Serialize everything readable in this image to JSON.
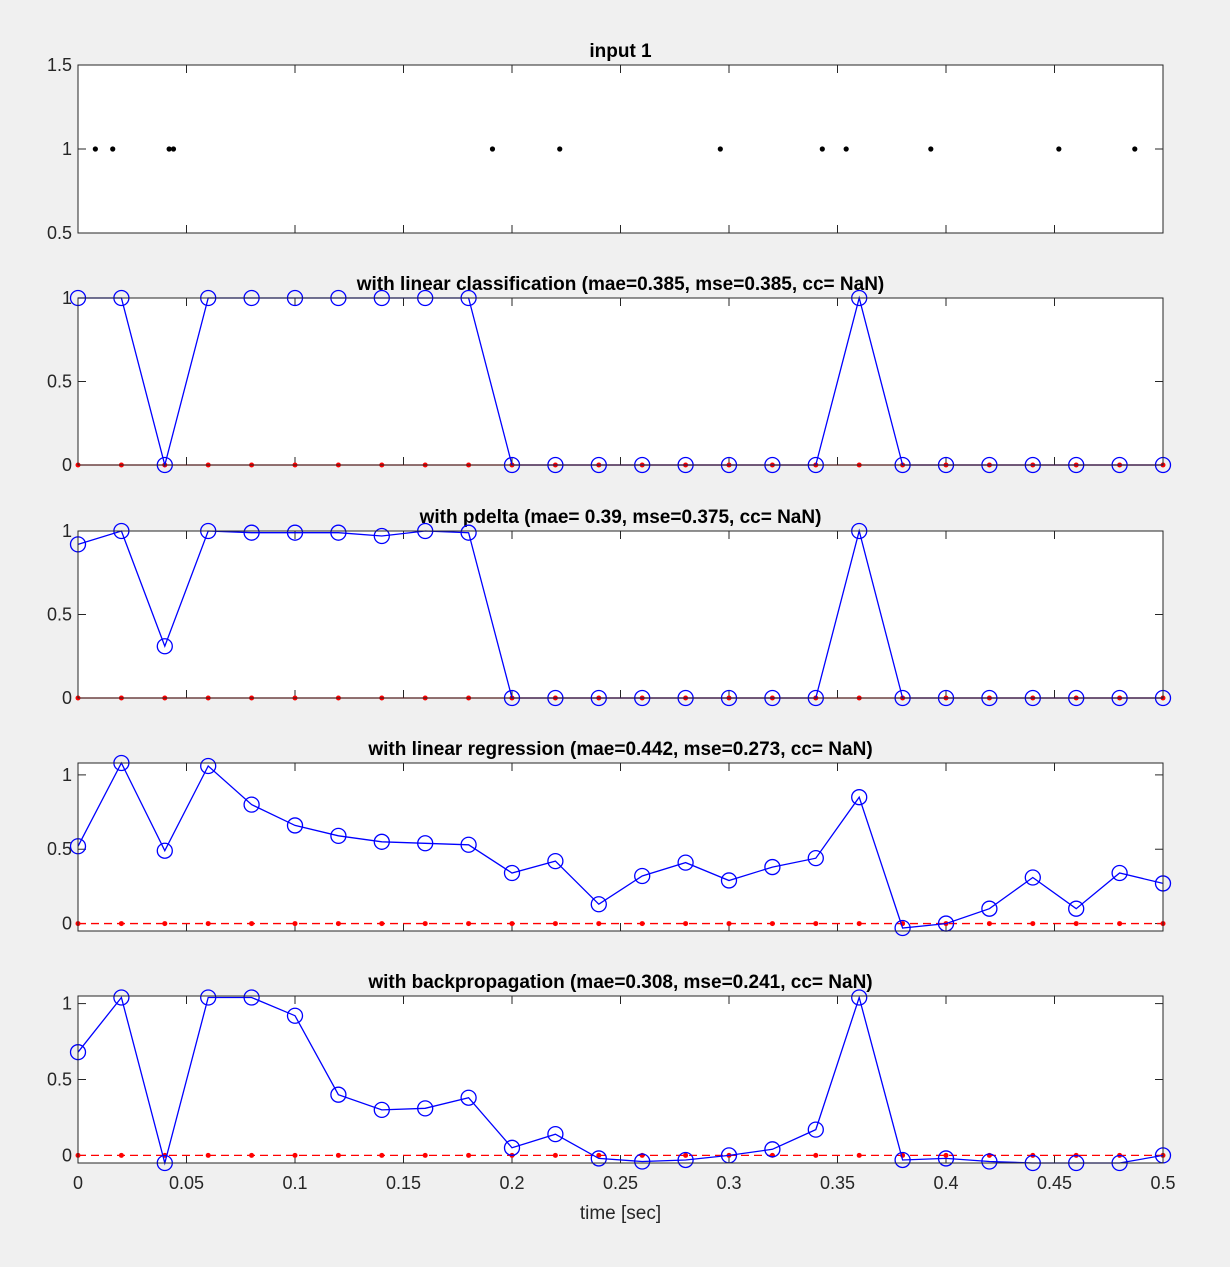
{
  "chart_data": [
    {
      "type": "scatter",
      "title": "input 1",
      "xlim": [
        0,
        0.5
      ],
      "ylim": [
        0.5,
        1.5
      ],
      "yticks": [
        "0.5",
        "1",
        "1.5"
      ],
      "xtick_labels_shown": false,
      "series": [
        {
          "color": "#000000",
          "marker": "dot",
          "x": [
            0.008,
            0.016,
            0.042,
            0.044,
            0.191,
            0.222,
            0.296,
            0.343,
            0.354,
            0.393,
            0.452,
            0.487
          ],
          "y": [
            1,
            1,
            1,
            1,
            1,
            1,
            1,
            1,
            1,
            1,
            1,
            1
          ]
        }
      ]
    },
    {
      "type": "line",
      "title": "with linear classification (mae=0.385, mse=0.385, cc=  NaN)",
      "xlim": [
        0,
        0.5
      ],
      "ylim": [
        0,
        1
      ],
      "yticks": [
        "0",
        "0.5",
        "1"
      ],
      "xtick_labels_shown": false,
      "target": {
        "color": "#ff0000",
        "style": "solid",
        "value": 0
      },
      "series": [
        {
          "color": "#0000ff",
          "marker": "circle",
          "values": [
            1,
            1,
            0,
            1,
            1,
            1,
            1,
            1,
            1,
            1,
            0,
            0,
            0,
            0,
            0,
            0,
            0,
            0,
            1,
            0,
            0,
            0,
            0,
            0,
            0,
            0
          ]
        }
      ]
    },
    {
      "type": "line",
      "title": "with pdelta (mae= 0.39, mse=0.375, cc=  NaN)",
      "xlim": [
        0,
        0.5
      ],
      "ylim": [
        0,
        1
      ],
      "yticks": [
        "0",
        "0.5",
        "1"
      ],
      "xtick_labels_shown": false,
      "target": {
        "color": "#ff0000",
        "style": "solid",
        "value": 0
      },
      "series": [
        {
          "color": "#0000ff",
          "marker": "circle",
          "values": [
            0.92,
            1,
            0.31,
            1,
            0.99,
            0.99,
            0.99,
            0.97,
            1,
            0.99,
            0,
            0,
            0,
            0,
            0,
            0,
            0,
            0,
            1,
            0,
            0,
            0,
            0,
            0,
            0,
            0
          ]
        }
      ]
    },
    {
      "type": "line",
      "title": "with linear regression (mae=0.442, mse=0.273, cc=  NaN)",
      "xlim": [
        0,
        0.5
      ],
      "ylim": [
        -0.05,
        1.08
      ],
      "yticks": [
        "0",
        "0.5",
        "1"
      ],
      "xtick_labels_shown": false,
      "target": {
        "color": "#ff0000",
        "style": "dashed",
        "value": 0
      },
      "series": [
        {
          "color": "#0000ff",
          "marker": "circle",
          "values": [
            0.52,
            1.08,
            0.49,
            1.06,
            0.8,
            0.66,
            0.59,
            0.55,
            0.54,
            0.53,
            0.34,
            0.42,
            0.13,
            0.32,
            0.41,
            0.29,
            0.38,
            0.44,
            0.85,
            -0.03,
            0.0,
            0.1,
            0.31,
            0.1,
            0.34,
            0.27
          ]
        }
      ]
    },
    {
      "type": "line",
      "title": "with backpropagation (mae=0.308, mse=0.241, cc=  NaN)",
      "xlim": [
        0,
        0.5
      ],
      "ylim": [
        -0.05,
        1.05
      ],
      "yticks": [
        "0",
        "0.5",
        "1"
      ],
      "xticks": [
        "0",
        "0.05",
        "0.1",
        "0.15",
        "0.2",
        "0.25",
        "0.3",
        "0.35",
        "0.4",
        "0.45",
        "0.5"
      ],
      "xlabel": "time [sec]",
      "target": {
        "color": "#ff0000",
        "style": "dashed",
        "value": 0
      },
      "series": [
        {
          "color": "#0000ff",
          "marker": "circle",
          "values": [
            0.68,
            1.04,
            -0.05,
            1.04,
            1.04,
            0.92,
            0.4,
            0.3,
            0.31,
            0.38,
            0.05,
            0.14,
            -0.02,
            -0.04,
            -0.03,
            0.0,
            0.04,
            0.17,
            1.04,
            -0.03,
            -0.02,
            -0.04,
            -0.05,
            -0.05,
            -0.05,
            0.0
          ]
        }
      ]
    }
  ]
}
